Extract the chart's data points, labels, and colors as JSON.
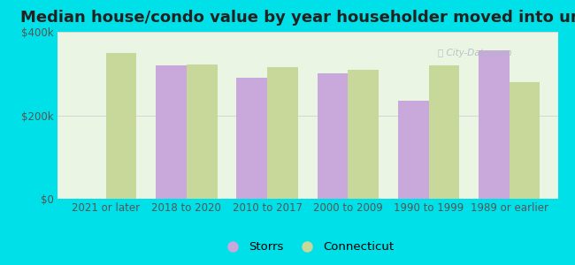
{
  "title": "Median house/condo value by year householder moved into unit",
  "categories": [
    "2021 or later",
    "2018 to 2020",
    "2010 to 2017",
    "2000 to 2009",
    "1990 to 1999",
    "1989 or earlier"
  ],
  "storrs_values": [
    null,
    320000,
    290000,
    300000,
    235000,
    355000
  ],
  "connecticut_values": [
    350000,
    322000,
    315000,
    310000,
    320000,
    280000
  ],
  "storrs_color": "#c9a8dc",
  "connecticut_color": "#c8d89a",
  "background_color": "#00e0e8",
  "plot_bg_color": "#eaf5e4",
  "title_color": "#222222",
  "tick_label_color": "#555555",
  "grid_color": "#d0d0d0",
  "ylim": [
    0,
    400000
  ],
  "yticks": [
    0,
    200000,
    400000
  ],
  "ytick_labels": [
    "$0",
    "$200k",
    "$400k"
  ],
  "legend_labels": [
    "Storrs",
    "Connecticut"
  ],
  "bar_width": 0.38,
  "title_fontsize": 13,
  "tick_fontsize": 8.5,
  "legend_fontsize": 9.5
}
